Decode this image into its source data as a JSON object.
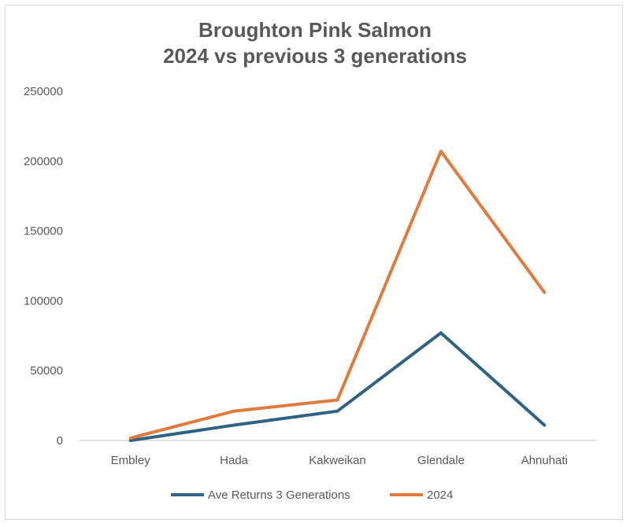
{
  "chart_data": {
    "type": "line",
    "title_line1": "Broughton Pink Salmon",
    "title_line2": "2024 vs previous 3 generations",
    "categories": [
      "Embley",
      "Hada",
      "Kakweikan",
      "Glendale",
      "Ahnuhati"
    ],
    "ylim": [
      0,
      250000
    ],
    "yticks": [
      0,
      50000,
      100000,
      150000,
      200000,
      250000
    ],
    "grid": false,
    "legend_position": "bottom",
    "series": [
      {
        "name": "Ave Returns 3 Generations",
        "color": "#2E6384",
        "values": [
          0,
          11000,
          21000,
          77000,
          11000
        ]
      },
      {
        "name": "2024",
        "color": "#E07B3E",
        "values": [
          1700,
          21000,
          29000,
          207000,
          106000
        ]
      }
    ]
  }
}
